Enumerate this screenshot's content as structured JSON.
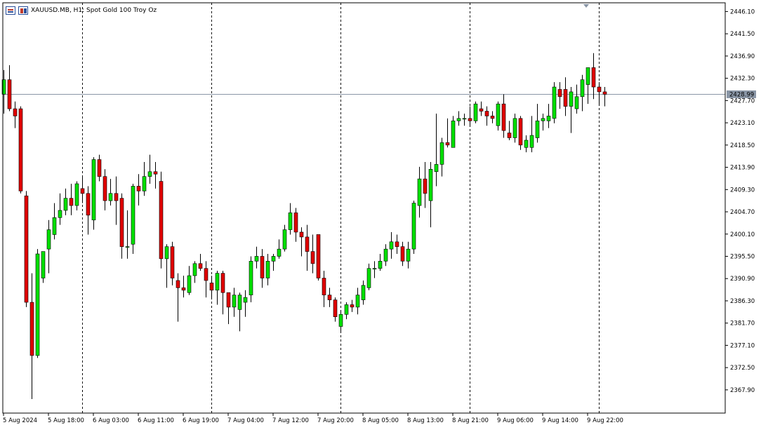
{
  "window": {
    "legend_text": "XAUUSD.MB, H1:  Spot Gold 100 Troy Oz",
    "icons": [
      "one-click-trading-icon",
      "depth-of-market-icon"
    ]
  },
  "colors": {
    "bull": "#00e000",
    "bear": "#e00000",
    "grid": "#000000",
    "bid_line": "#8a96a6",
    "price_label_bg": "#8a96a6"
  },
  "chart_data": {
    "type": "candlestick",
    "symbol": "XAUUSD.MB",
    "timeframe": "H1",
    "current_price": "2428.99",
    "ylim": [
      2363.1,
      2447.9
    ],
    "y_ticks": [
      "2446.10",
      "2441.50",
      "2436.90",
      "2432.30",
      "2427.70",
      "2423.10",
      "2418.50",
      "2413.90",
      "2409.30",
      "2404.70",
      "2400.10",
      "2395.50",
      "2390.90",
      "2386.30",
      "2381.70",
      "2377.10",
      "2372.50",
      "2367.90"
    ],
    "x_ticks": [
      "5 Aug 2024",
      "5 Aug 18:00",
      "6 Aug 03:00",
      "6 Aug 11:00",
      "6 Aug 19:00",
      "7 Aug 04:00",
      "7 Aug 12:00",
      "7 Aug 20:00",
      "8 Aug 05:00",
      "8 Aug 13:00",
      "8 Aug 21:00",
      "9 Aug 06:00",
      "9 Aug 14:00",
      "9 Aug 22:00"
    ],
    "x_tick_index": [
      0,
      8,
      16,
      24,
      32,
      40,
      48,
      56,
      64,
      72,
      80,
      88,
      96,
      104
    ],
    "separator_index": [
      14,
      37,
      60,
      83,
      106
    ],
    "candles": [
      [
        2429.0,
        2434.0,
        2425.0,
        2432.0
      ],
      [
        2432.0,
        2435.0,
        2425.5,
        2426.0
      ],
      [
        2426.0,
        2427.5,
        2422.0,
        2424.5
      ],
      [
        2426.0,
        2426.5,
        2408.5,
        2409.0
      ],
      [
        2408.0,
        2409.0,
        2385.0,
        2386.0
      ],
      [
        2386.0,
        2392.0,
        2366.0,
        2375.0
      ],
      [
        2375.0,
        2397.0,
        2374.5,
        2396.0
      ],
      [
        2391.0,
        2396.0,
        2390.0,
        2396.5
      ],
      [
        2397.0,
        2403.0,
        2392.0,
        2401.0
      ],
      [
        2400.0,
        2406.5,
        2399.0,
        2403.5
      ],
      [
        2403.5,
        2408.5,
        2402.0,
        2405.0
      ],
      [
        2405.0,
        2409.5,
        2404.0,
        2407.5
      ],
      [
        2407.5,
        2410.5,
        2404.0,
        2406.0
      ],
      [
        2406.0,
        2411.0,
        2405.0,
        2410.5
      ],
      [
        2409.5,
        2412.0,
        2406.5,
        2408.5
      ],
      [
        2408.5,
        2410.0,
        2400.0,
        2404.0
      ],
      [
        2403.0,
        2416.0,
        2401.0,
        2415.5
      ],
      [
        2415.5,
        2416.5,
        2411.0,
        2412.0
      ],
      [
        2412.0,
        2413.5,
        2405.0,
        2407.0
      ],
      [
        2407.0,
        2411.5,
        2406.0,
        2408.5
      ],
      [
        2408.5,
        2412.0,
        2402.0,
        2407.0
      ],
      [
        2407.5,
        2408.5,
        2395.0,
        2397.5
      ],
      [
        2397.5,
        2405.0,
        2395.0,
        2397.5
      ],
      [
        2398.0,
        2410.5,
        2396.0,
        2410.0
      ],
      [
        2410.0,
        2412.5,
        2406.0,
        2409.0
      ],
      [
        2409.0,
        2415.0,
        2408.0,
        2412.0
      ],
      [
        2412.0,
        2416.5,
        2410.5,
        2413.0
      ],
      [
        2413.0,
        2415.0,
        2409.5,
        2412.5
      ],
      [
        2411.0,
        2413.0,
        2393.0,
        2395.0
      ],
      [
        2395.0,
        2398.0,
        2389.0,
        2397.5
      ],
      [
        2397.5,
        2398.5,
        2389.5,
        2391.0
      ],
      [
        2390.5,
        2392.0,
        2382.0,
        2389.0
      ],
      [
        2389.0,
        2391.5,
        2387.0,
        2388.5
      ],
      [
        2388.0,
        2393.5,
        2387.5,
        2391.5
      ],
      [
        2391.5,
        2394.5,
        2390.0,
        2394.0
      ],
      [
        2394.0,
        2396.0,
        2392.5,
        2393.0
      ],
      [
        2393.0,
        2394.5,
        2387.0,
        2390.5
      ],
      [
        2390.0,
        2391.5,
        2387.0,
        2388.5
      ],
      [
        2388.5,
        2392.5,
        2385.5,
        2392.0
      ],
      [
        2392.0,
        2392.5,
        2383.5,
        2388.0
      ],
      [
        2388.0,
        2388.0,
        2381.5,
        2385.0
      ],
      [
        2385.0,
        2389.0,
        2383.0,
        2387.5
      ],
      [
        2384.5,
        2388.0,
        2380.0,
        2387.5
      ],
      [
        2386.0,
        2388.5,
        2383.0,
        2387.0
      ],
      [
        2387.5,
        2395.5,
        2386.0,
        2394.5
      ],
      [
        2394.5,
        2397.5,
        2393.0,
        2395.5
      ],
      [
        2395.5,
        2397.0,
        2389.0,
        2391.0
      ],
      [
        2391.0,
        2396.0,
        2389.5,
        2394.5
      ],
      [
        2394.5,
        2396.0,
        2392.5,
        2395.5
      ],
      [
        2395.5,
        2399.0,
        2395.0,
        2397.0
      ],
      [
        2397.0,
        2402.0,
        2396.5,
        2401.0
      ],
      [
        2401.0,
        2406.5,
        2400.0,
        2404.5
      ],
      [
        2404.5,
        2405.5,
        2398.5,
        2400.5
      ],
      [
        2400.5,
        2401.5,
        2395.5,
        2399.5
      ],
      [
        2399.5,
        2402.0,
        2392.5,
        2396.5
      ],
      [
        2396.5,
        2400.0,
        2392.0,
        2394.0
      ],
      [
        2400.0,
        2400.0,
        2390.5,
        2391.0
      ],
      [
        2391.0,
        2392.5,
        2385.0,
        2387.5
      ],
      [
        2387.5,
        2389.0,
        2385.0,
        2386.5
      ],
      [
        2386.5,
        2387.0,
        2382.0,
        2383.0
      ],
      [
        2381.0,
        2384.0,
        2380.0,
        2383.5
      ],
      [
        2383.5,
        2386.0,
        2382.5,
        2385.5
      ],
      [
        2385.5,
        2386.5,
        2384.0,
        2385.0
      ],
      [
        2385.0,
        2389.0,
        2383.5,
        2387.5
      ],
      [
        2386.5,
        2390.5,
        2385.5,
        2389.5
      ],
      [
        2389.0,
        2394.0,
        2388.5,
        2393.0
      ],
      [
        2393.0,
        2394.5,
        2391.0,
        2393.0
      ],
      [
        2393.0,
        2396.0,
        2392.5,
        2394.5
      ],
      [
        2394.5,
        2398.0,
        2393.5,
        2397.0
      ],
      [
        2397.0,
        2400.5,
        2395.0,
        2398.5
      ],
      [
        2398.5,
        2400.0,
        2396.0,
        2397.5
      ],
      [
        2397.5,
        2398.5,
        2393.5,
        2394.5
      ],
      [
        2394.5,
        2398.5,
        2393.0,
        2397.0
      ],
      [
        2397.0,
        2407.0,
        2396.0,
        2406.5
      ],
      [
        2406.0,
        2414.0,
        2403.5,
        2411.5
      ],
      [
        2411.5,
        2415.0,
        2405.5,
        2408.5
      ],
      [
        2407.0,
        2415.0,
        2401.5,
        2413.5
      ],
      [
        2413.0,
        2425.0,
        2410.0,
        2414.5
      ],
      [
        2414.5,
        2420.0,
        2412.0,
        2419.0
      ],
      [
        2419.0,
        2424.0,
        2418.0,
        2418.5
      ],
      [
        2418.0,
        2424.5,
        2418.0,
        2423.5
      ],
      [
        2423.5,
        2425.5,
        2422.5,
        2424.0
      ],
      [
        2424.0,
        2425.0,
        2422.5,
        2424.0
      ],
      [
        2424.0,
        2426.5,
        2422.5,
        2423.5
      ],
      [
        2423.5,
        2427.5,
        2423.0,
        2427.0
      ],
      [
        2426.0,
        2427.5,
        2424.5,
        2425.5
      ],
      [
        2425.5,
        2426.5,
        2422.5,
        2424.5
      ],
      [
        2424.5,
        2425.5,
        2423.0,
        2424.0
      ],
      [
        2422.5,
        2427.5,
        2421.5,
        2427.0
      ],
      [
        2427.0,
        2429.0,
        2420.0,
        2421.5
      ],
      [
        2421.0,
        2423.5,
        2419.5,
        2420.0
      ],
      [
        2420.0,
        2425.0,
        2419.0,
        2424.0
      ],
      [
        2424.0,
        2424.5,
        2417.5,
        2418.5
      ],
      [
        2418.0,
        2420.5,
        2417.0,
        2419.5
      ],
      [
        2418.0,
        2424.5,
        2417.0,
        2420.5
      ],
      [
        2420.0,
        2427.0,
        2419.0,
        2423.5
      ],
      [
        2423.5,
        2425.0,
        2421.5,
        2424.0
      ],
      [
        2423.5,
        2427.0,
        2422.0,
        2424.5
      ],
      [
        2424.0,
        2431.5,
        2423.0,
        2430.5
      ],
      [
        2430.0,
        2431.5,
        2426.0,
        2428.5
      ],
      [
        2430.0,
        2432.5,
        2424.5,
        2426.5
      ],
      [
        2426.5,
        2430.5,
        2421.0,
        2429.5
      ],
      [
        2426.0,
        2431.0,
        2425.0,
        2428.5
      ],
      [
        2428.5,
        2433.0,
        2425.5,
        2432.0
      ],
      [
        2431.0,
        2434.5,
        2427.0,
        2434.5
      ],
      [
        2434.5,
        2437.5,
        2428.0,
        2430.5
      ],
      [
        2430.5,
        2431.5,
        2427.0,
        2429.5
      ],
      [
        2429.5,
        2430.5,
        2426.5,
        2428.99
      ]
    ]
  }
}
